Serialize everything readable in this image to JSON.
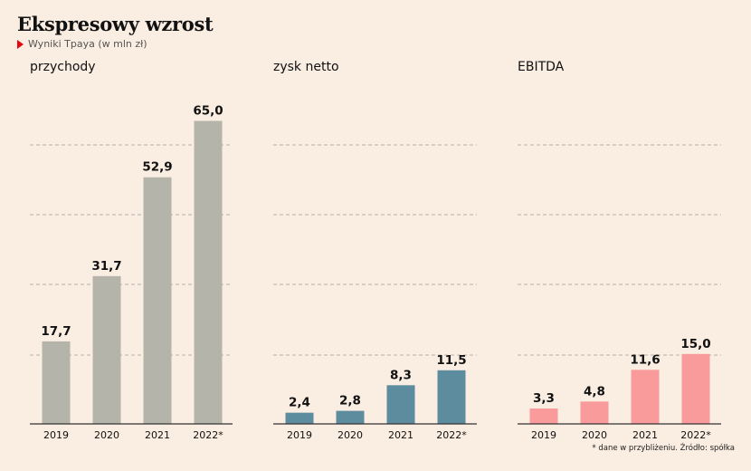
{
  "header": {
    "title": "Ekspresowy wzrost",
    "subtitle": "Wyniki Tpaya (w mln zł)"
  },
  "footnote": "* dane w przybliżeniu. Źródło: spółka",
  "colors": {
    "background": "#faede2",
    "przychody": "#b4b4aa",
    "zysk_netto": "#5d8c9e",
    "ebitda": "#f99b9a",
    "marker": "#e30613"
  },
  "chart_data": [
    {
      "type": "bar",
      "title": "przychody",
      "categories": [
        "2019",
        "2020",
        "2021",
        "2022*"
      ],
      "values": [
        17.7,
        31.7,
        52.9,
        65.0
      ],
      "value_labels": [
        "17,7",
        "31,7",
        "52,9",
        "65,0"
      ],
      "ylim": [
        0,
        75
      ],
      "grid": true,
      "color": "#b4b4aa"
    },
    {
      "type": "bar",
      "title": "zysk netto",
      "categories": [
        "2019",
        "2020",
        "2021",
        "2022*"
      ],
      "values": [
        2.4,
        2.8,
        8.3,
        11.5
      ],
      "value_labels": [
        "2,4",
        "2,8",
        "8,3",
        "11,5"
      ],
      "ylim": [
        0,
        75
      ],
      "grid": true,
      "color": "#5d8c9e"
    },
    {
      "type": "bar",
      "title": "EBITDA",
      "categories": [
        "2019",
        "2020",
        "2021",
        "2022*"
      ],
      "values": [
        3.3,
        4.8,
        11.6,
        15.0
      ],
      "value_labels": [
        "3,3",
        "4,8",
        "11,6",
        "15,0"
      ],
      "ylim": [
        0,
        75
      ],
      "grid": true,
      "color": "#f99b9a"
    }
  ]
}
